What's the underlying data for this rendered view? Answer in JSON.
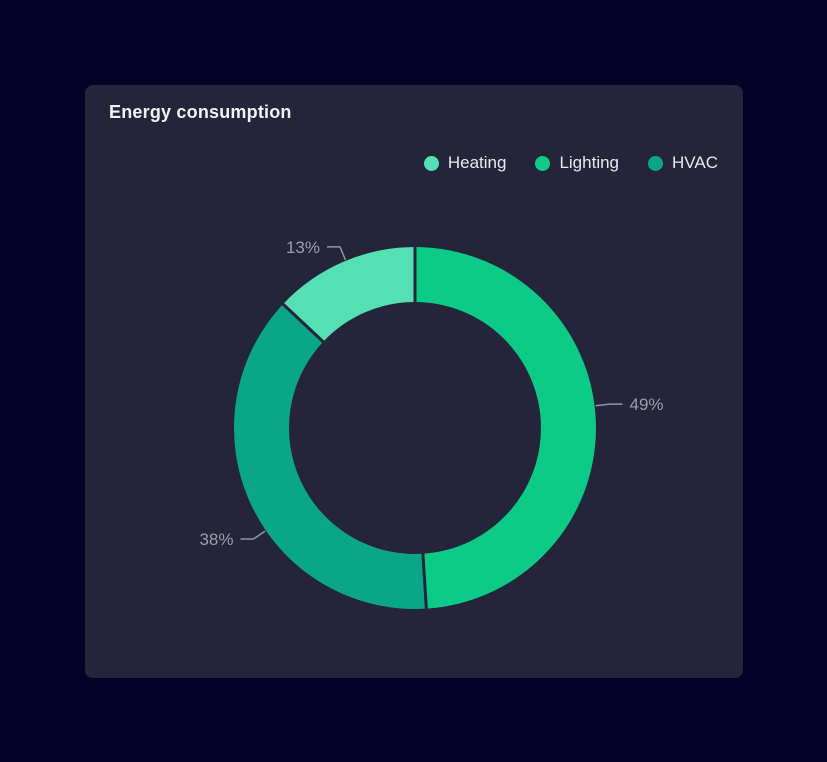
{
  "page": {
    "background": "#040327"
  },
  "card": {
    "title": "Energy consumption",
    "background": "#24243A"
  },
  "chart_data": {
    "type": "donut",
    "title": "Energy consumption",
    "series": [
      {
        "name": "Heating",
        "value": 13,
        "pct_label": "13%",
        "color": "#55DFB4"
      },
      {
        "name": "Lighting",
        "value": 49,
        "pct_label": "49%",
        "color": "#0CCB87"
      },
      {
        "name": "HVAC",
        "value": 38,
        "pct_label": "38%",
        "color": "#0AA689"
      }
    ],
    "total": 100,
    "start_angle": "top",
    "direction": "clockwise",
    "draw_order_clockwise_from_top": [
      "Lighting",
      "HVAC",
      "Heating"
    ],
    "legend_order": [
      "Heating",
      "Lighting",
      "HVAC"
    ],
    "legend_position": "top-right",
    "labels": "outside-percent-with-leader-lines",
    "label_color": "#9B9EAE",
    "leader_line_color": "#9094A5",
    "donut_hole_ratio": 0.7
  }
}
